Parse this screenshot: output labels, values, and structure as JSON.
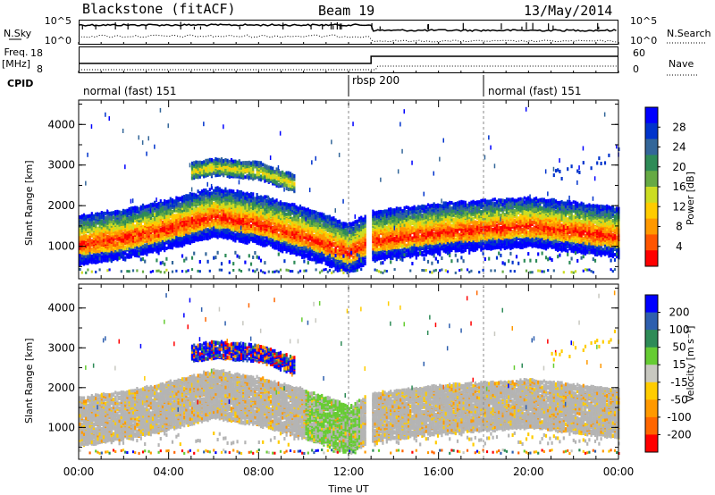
{
  "header": {
    "station": "Blackstone (fitACF)",
    "beam": "Beam 19",
    "date": "13/May/2014"
  },
  "top_panels": {
    "nsky_label": "N.Sky",
    "nsky_ticks": [
      "10^5",
      "10^0"
    ],
    "nsearch_label": "N.Search",
    "nsearch_ticks": [
      "10^5",
      "10^0"
    ],
    "freq_label_line1": "Freq.",
    "freq_label_line2": "[MHz]",
    "freq_ticks": [
      "18",
      "8"
    ],
    "nave_label": "Nave",
    "nave_ticks": [
      "60",
      "0"
    ],
    "cpid_label": "CPID",
    "cpid_segments": [
      {
        "label": "normal (fast) 151",
        "start_hour": 0
      },
      {
        "label": "rbsp 200",
        "start_hour": 12
      },
      {
        "label": "normal (fast) 151",
        "start_hour": 18
      }
    ]
  },
  "colors": {
    "power_scale": [
      "#0000ff",
      "#0033cc",
      "#336699",
      "#2e8b57",
      "#66aa44",
      "#ccdd22",
      "#ffcc00",
      "#ff9900",
      "#ff5500",
      "#ff0000"
    ],
    "velocity_scale": [
      "#0000ff",
      "#2e5fae",
      "#2e8b57",
      "#66cc33",
      "#c8c8c0",
      "#ffcc00",
      "#ff9900",
      "#ff6600",
      "#ff0000"
    ],
    "ground_scatter": "#b4b4b4"
  },
  "chart_data": [
    {
      "type": "heatmap",
      "ylabel": "Slant Range [km]",
      "x_ticks": [
        "00:00",
        "04:00",
        "08:00",
        "12:00",
        "16:00",
        "20:00",
        "00:00"
      ],
      "y_ticks": [
        "1000",
        "2000",
        "3000",
        "4000"
      ],
      "xlim_hours": [
        0,
        24
      ],
      "ylim": [
        200,
        4600
      ],
      "colorbar_label": "Power [dB]",
      "colorbar_ticks": [
        "28",
        "24",
        "20",
        "16",
        "12",
        "8",
        "4"
      ],
      "bands": [
        {
          "desc": "main",
          "hours": [
            0,
            2,
            4,
            6,
            8,
            10,
            12,
            13,
            16,
            20,
            24
          ],
          "center_km": [
            1100,
            1250,
            1500,
            1800,
            1600,
            1300,
            900,
            1200,
            1400,
            1550,
            1300
          ]
        },
        {
          "desc": "upper",
          "hours": [
            5,
            6,
            8,
            9.5
          ],
          "center_km": [
            2900,
            3000,
            2900,
            2600
          ]
        }
      ]
    },
    {
      "type": "heatmap",
      "ylabel": "Slant Range [km]",
      "xlabel": "Time UT",
      "x_ticks": [
        "00:00",
        "04:00",
        "08:00",
        "12:00",
        "16:00",
        "20:00",
        "00:00"
      ],
      "y_ticks": [
        "1000",
        "2000",
        "3000",
        "4000"
      ],
      "xlim_hours": [
        0,
        24
      ],
      "ylim": [
        200,
        4600
      ],
      "colorbar_label": "Velocity [m s⁻¹]",
      "colorbar_ticks": [
        "200",
        "100",
        "50",
        "15",
        "-15",
        "-50",
        "-100",
        "-200"
      ]
    }
  ]
}
